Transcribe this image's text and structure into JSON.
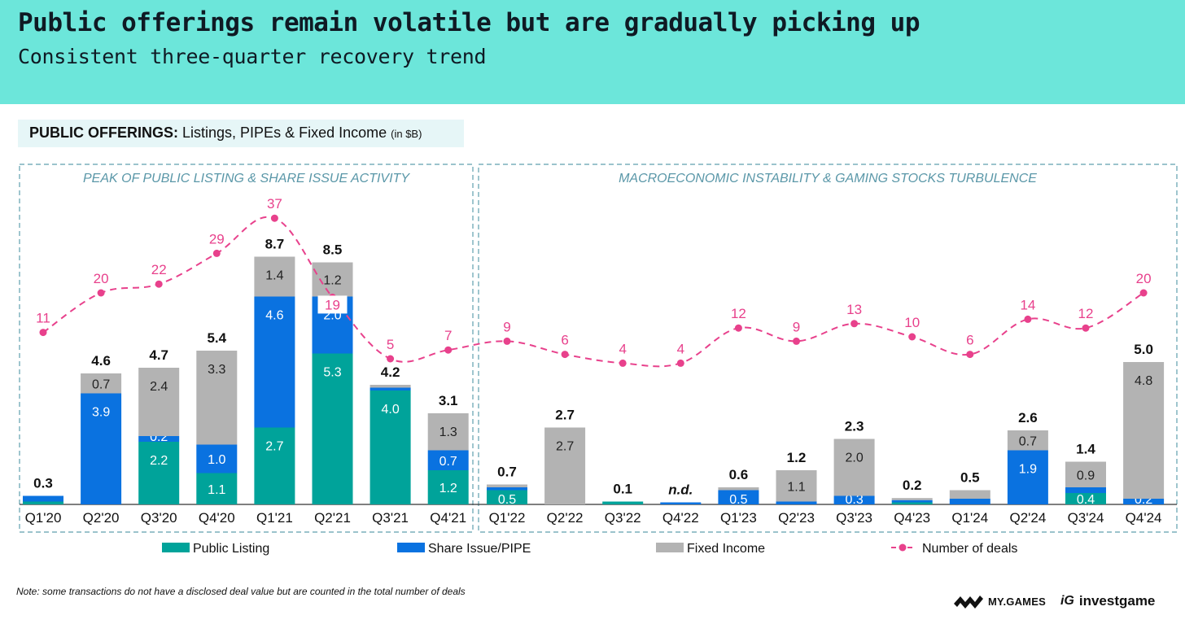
{
  "header": {
    "title": "Public offerings remain volatile but are gradually picking up",
    "subtitle": "Consistent three-quarter recovery trend"
  },
  "chart_label": {
    "bold": "PUBLIC OFFERINGS:",
    "rest": "Listings, PIPEs & Fixed Income",
    "unit": "(in $B)"
  },
  "periods": [
    {
      "label": "PEAK OF PUBLIC LISTING & SHARE ISSUE ACTIVITY",
      "from": "Q1'20",
      "to": "Q4'21"
    },
    {
      "label": "MACROECONOMIC INSTABILITY & GAMING STOCKS TURBULENCE",
      "from": "Q1'22",
      "to": "Q4'24"
    }
  ],
  "colors": {
    "public_listing": "#00a39a",
    "share_issue": "#0a72e0",
    "fixed_income": "#b3b3b3",
    "deals": "#e8418c",
    "period_border": "#5f9fae",
    "period_text": "#5a97a8",
    "header_bg": "#6ce6da"
  },
  "chart_data": {
    "type": "bar",
    "stacked": true,
    "title": "PUBLIC OFFERINGS: Listings, PIPEs & Fixed Income (in $B)",
    "xlabel": "",
    "ylabel": "",
    "categories": [
      "Q1'20",
      "Q2'20",
      "Q3'20",
      "Q4'20",
      "Q1'21",
      "Q2'21",
      "Q3'21",
      "Q4'21",
      "Q1'22",
      "Q2'22",
      "Q3'22",
      "Q4'22",
      "Q1'23",
      "Q2'23",
      "Q3'23",
      "Q4'23",
      "Q1'24",
      "Q2'24",
      "Q3'24",
      "Q4'24"
    ],
    "series": [
      {
        "name": "Public Listing",
        "values": [
          0.1,
          0.0,
          2.2,
          1.1,
          2.7,
          5.3,
          4.0,
          1.2,
          0.5,
          0.0,
          0.1,
          0.0,
          0.0,
          0.0,
          0.0,
          0.05,
          0.0,
          0.0,
          0.4,
          0.0
        ],
        "labels": [
          "",
          "",
          "2.2",
          "1.1",
          "2.7",
          "5.3",
          "4.0",
          "1.2",
          "0.5",
          "",
          "",
          "",
          "",
          "",
          "",
          "",
          "",
          "",
          "0.4",
          ""
        ]
      },
      {
        "name": "Share Issue/PIPE",
        "values": [
          0.2,
          3.9,
          0.2,
          1.0,
          4.6,
          2.0,
          0.1,
          0.7,
          0.1,
          0.0,
          0.0,
          0.05,
          0.5,
          0.1,
          0.3,
          0.08,
          0.2,
          1.9,
          0.2,
          0.2
        ],
        "labels": [
          "",
          "3.9",
          "0.2",
          "1.0",
          "4.6",
          "2.0",
          "",
          "0.7",
          "",
          "",
          "",
          "",
          "0.5",
          "",
          "0.3",
          "",
          "",
          "1.9",
          "",
          "0.2"
        ]
      },
      {
        "name": "Fixed Income",
        "values": [
          0.0,
          0.7,
          2.4,
          3.3,
          1.4,
          1.2,
          0.1,
          1.3,
          0.1,
          2.7,
          0.0,
          0.0,
          0.1,
          1.1,
          2.0,
          0.07,
          0.3,
          0.7,
          0.9,
          4.8
        ],
        "labels": [
          "",
          "0.7",
          "2.4",
          "3.3",
          "1.4",
          "1.2",
          "",
          "1.3",
          "",
          "2.7",
          "",
          "",
          "",
          "1.1",
          "2.0",
          "",
          "",
          "0.7",
          "0.9",
          "4.8"
        ]
      }
    ],
    "totals": [
      "0.3",
      "4.6",
      "4.7",
      "5.4",
      "8.7",
      "8.5",
      "4.2",
      "3.1",
      "0.7",
      "2.7",
      "0.1",
      "n.d.",
      "0.6",
      "1.2",
      "2.3",
      "0.2",
      "0.5",
      "2.6",
      "1.4",
      "5.0"
    ],
    "line_series": {
      "name": "Number of deals",
      "values": [
        11,
        20,
        22,
        29,
        37,
        19,
        5,
        7,
        9,
        6,
        4,
        4,
        12,
        9,
        13,
        10,
        6,
        14,
        12,
        20
      ]
    },
    "ylim": [
      0,
      9.5
    ],
    "grid": false,
    "legend": {
      "position": "bottom",
      "entries": [
        "Public Listing",
        "Share Issue/PIPE",
        "Fixed Income",
        "Number of deals"
      ]
    }
  },
  "note": "Note: some transactions do not have a disclosed deal value but are counted in the total number of deals",
  "logos": {
    "mygames": "MY.GAMES",
    "investgame_mark": "iG",
    "investgame": "investgame"
  }
}
